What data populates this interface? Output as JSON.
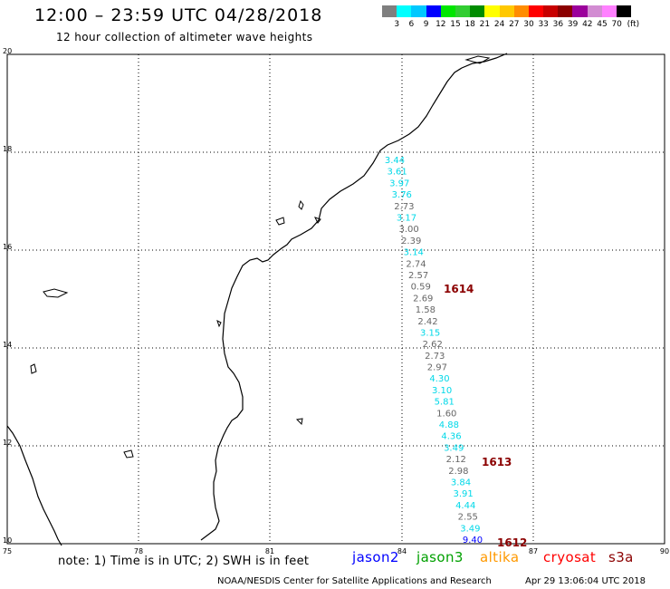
{
  "header": {
    "title": "12:00 – 23:59 UTC 04/28/2018",
    "subtitle": "12 hour collection of altimeter wave heights"
  },
  "colorbar": {
    "colors": [
      "#7f7f7f",
      "#00ffff",
      "#00c8ff",
      "#0000ff",
      "#00e600",
      "#32cd32",
      "#008c00",
      "#ffff00",
      "#ffc800",
      "#ff8c00",
      "#ff0000",
      "#c80000",
      "#8b0000",
      "#9b009b",
      "#d28cd2",
      "#ff80ff",
      "#000000"
    ],
    "labels": [
      "3",
      "6",
      "9",
      "12",
      "15",
      "18",
      "21",
      "24",
      "27",
      "30",
      "33",
      "36",
      "39",
      "42",
      "45",
      "70",
      "(ft)"
    ]
  },
  "axes": {
    "lon_labels": [
      "75",
      "78",
      "81",
      "84",
      "87",
      "90"
    ],
    "lat_labels": [
      "20",
      "18",
      "16",
      "14",
      "12",
      "10"
    ]
  },
  "orbits": [
    "1614",
    "1613",
    "1612"
  ],
  "observations": [
    {
      "v": "3.44",
      "c": "#00d8e8"
    },
    {
      "v": "3.61",
      "c": "#00d8e8"
    },
    {
      "v": "3.97",
      "c": "#00d8e8"
    },
    {
      "v": "3.76",
      "c": "#00d8e8"
    },
    {
      "v": "2.73",
      "c": "#666666"
    },
    {
      "v": "3.17",
      "c": "#00d8e8"
    },
    {
      "v": "3.00",
      "c": "#666666"
    },
    {
      "v": "2.39",
      "c": "#666666"
    },
    {
      "v": "3.14",
      "c": "#00d8e8"
    },
    {
      "v": "2.74",
      "c": "#666666"
    },
    {
      "v": "2.57",
      "c": "#666666"
    },
    {
      "v": "0.59",
      "c": "#666666"
    },
    {
      "v": "2.69",
      "c": "#666666"
    },
    {
      "v": "1.58",
      "c": "#666666"
    },
    {
      "v": "2.42",
      "c": "#666666"
    },
    {
      "v": "3.15",
      "c": "#00d8e8"
    },
    {
      "v": "2.62",
      "c": "#666666"
    },
    {
      "v": "2.73",
      "c": "#666666"
    },
    {
      "v": "2.97",
      "c": "#666666"
    },
    {
      "v": "4.30",
      "c": "#00d8e8"
    },
    {
      "v": "3.10",
      "c": "#00d8e8"
    },
    {
      "v": "5.81",
      "c": "#00d8e8"
    },
    {
      "v": "1.60",
      "c": "#666666"
    },
    {
      "v": "4.88",
      "c": "#00d8e8"
    },
    {
      "v": "4.36",
      "c": "#00d8e8"
    },
    {
      "v": "3.49",
      "c": "#00d8e8"
    },
    {
      "v": "2.12",
      "c": "#666666"
    },
    {
      "v": "2.98",
      "c": "#666666"
    },
    {
      "v": "3.84",
      "c": "#00d8e8"
    },
    {
      "v": "3.91",
      "c": "#00d8e8"
    },
    {
      "v": "4.44",
      "c": "#00d8e8"
    },
    {
      "v": "2.55",
      "c": "#666666"
    },
    {
      "v": "3.49",
      "c": "#00d8e8"
    },
    {
      "v": "9.40",
      "c": "#0000ff"
    }
  ],
  "footer": {
    "note": "note:  1) Time is in UTC;  2) SWH is in feet",
    "credit": "NOAA/NESDIS Center for Satellite Applications and Research",
    "timestamp": "Apr 29 13:06:04 UTC 2018"
  },
  "legend": [
    {
      "name": "jason2",
      "color": "#0000ff"
    },
    {
      "name": "jason3",
      "color": "#00a000"
    },
    {
      "name": "altika",
      "color": "#ff9900"
    },
    {
      "name": "cryosat",
      "color": "#ff0000"
    },
    {
      "name": "s3a",
      "color": "#8b0000"
    }
  ]
}
